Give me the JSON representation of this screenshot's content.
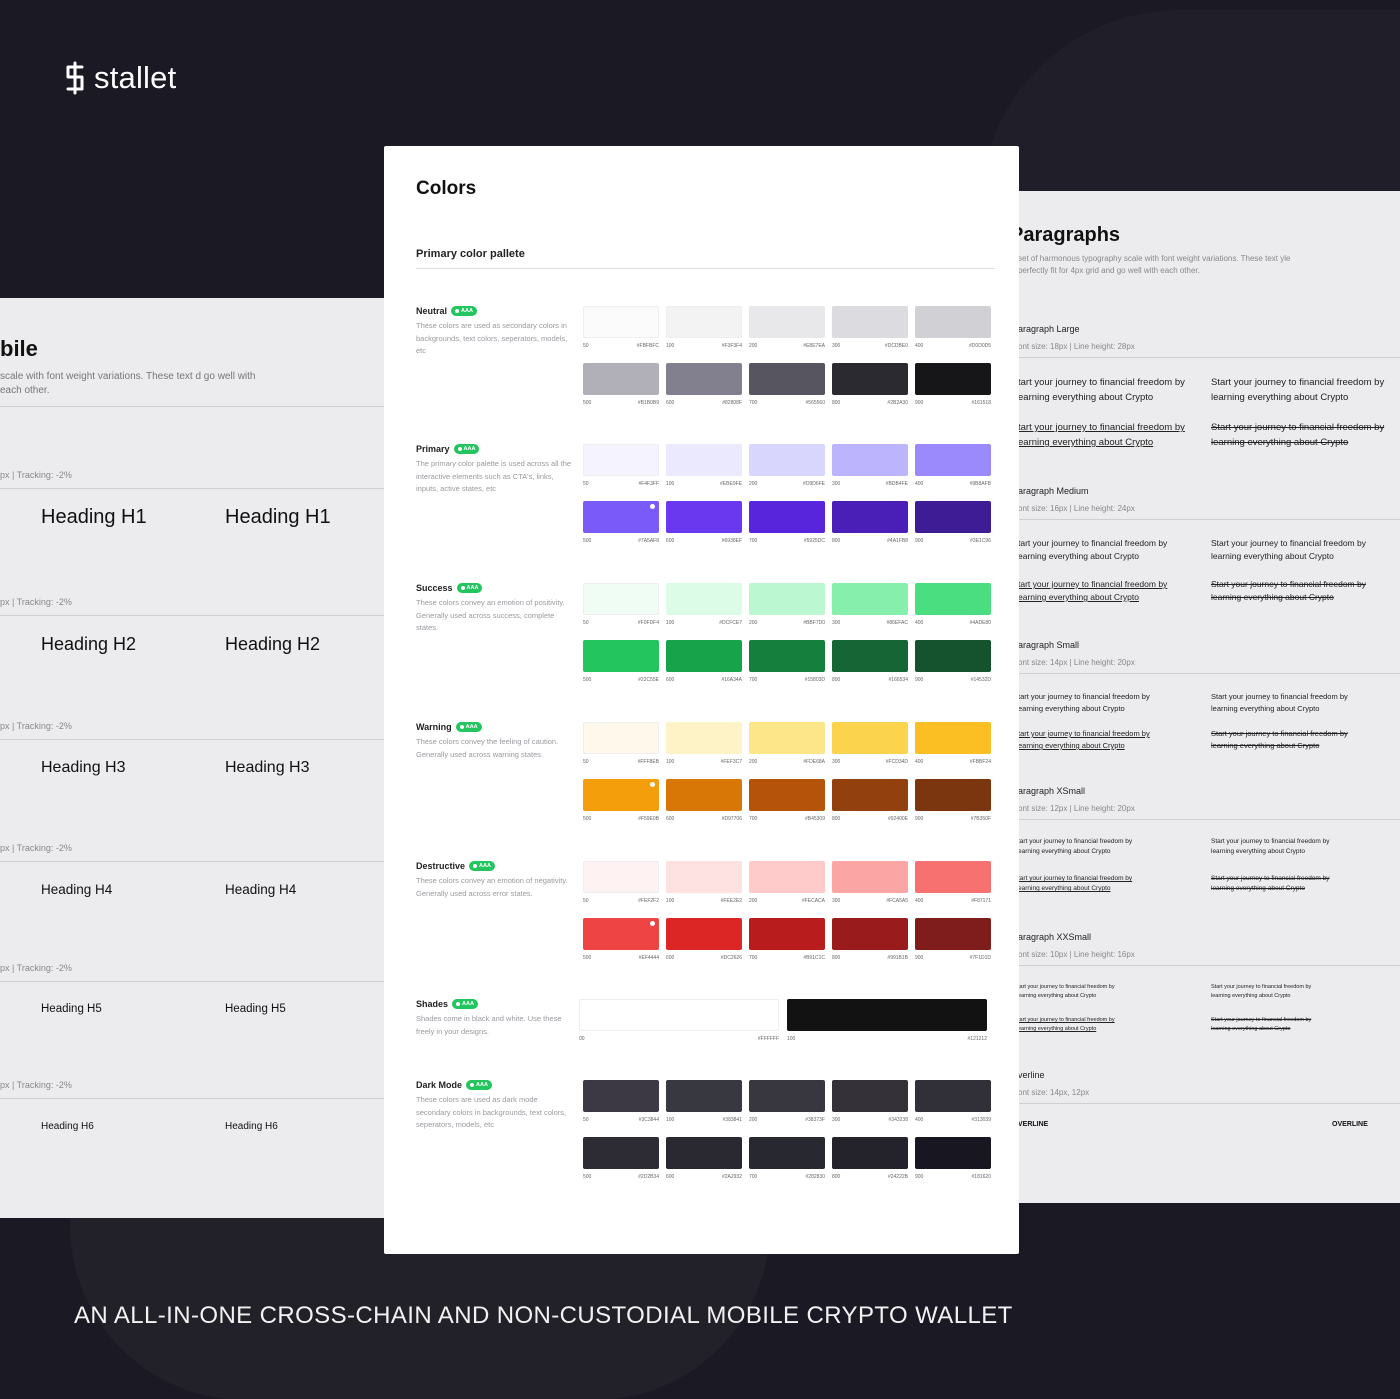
{
  "brand": {
    "name": "stallet"
  },
  "tagline": "AN ALL-IN-ONE CROSS-CHAIN AND NON-CUSTODIAL MOBILE CRYPTO WALLET",
  "headings_panel": {
    "title": "bile",
    "description": "scale with font weight variations. These text d go well with each other.",
    "rows": [
      {
        "spec": "px | Tracking: -2%",
        "label": "Heading H1",
        "size": 20
      },
      {
        "spec": "px | Tracking: -2%",
        "label": "Heading H2",
        "size": 18
      },
      {
        "spec": "px | Tracking: -2%",
        "label": "Heading H3",
        "size": 16
      },
      {
        "spec": "px | Tracking: -2%",
        "label": "Heading H4",
        "size": 13.5
      },
      {
        "spec": "px | Tracking: -2%",
        "label": "Heading H5",
        "size": 11.5
      },
      {
        "spec": "px | Tracking: -2%",
        "label": "Heading H6",
        "size": 10
      }
    ]
  },
  "paragraphs_panel": {
    "title": "Paragraphs",
    "description": "set of harmonous typography scale with font weight variations. These text yle perfectly fit for 4px grid and go well with each other.",
    "sample_cut": "tart your journey to financial freedom by earning everything about Crypto",
    "sample_full": "Start your journey to financial freedom by learning everything about Crypto",
    "sections": [
      {
        "label": "aragraph Large",
        "spec": "ont size: 18px | Line height: 28px",
        "text_size": 9.5
      },
      {
        "label": "aragraph Medium",
        "spec": "ont size: 16px | Line height: 24px",
        "text_size": 8.5
      },
      {
        "label": "aragraph Small",
        "spec": "ont size: 14px | Line height: 20px",
        "text_size": 7.5
      },
      {
        "label": "aragraph XSmall",
        "spec": "ont size: 12px | Line height: 20px",
        "text_size": 6.5
      },
      {
        "label": "aragraph XXSmall",
        "spec": "ont size: 10px | Line height: 16px",
        "text_size": 5.5
      }
    ],
    "overline": {
      "label": "verline",
      "spec": "ont size: 14px, 12px",
      "sample_left": "VERLINE",
      "sample_right": "OVERLINE"
    }
  },
  "colors_panel": {
    "title": "Colors",
    "subtitle": "Primary color pallete",
    "badge": "AAA",
    "groups": [
      {
        "name": "Neutral",
        "description": "These colors are used as secondary colors in backgrounds, text colors, seperators, models, etc",
        "swatches": [
          {
            "step": "50",
            "hex": "#FBFBFC"
          },
          {
            "step": "100",
            "hex": "#F3F3F4"
          },
          {
            "step": "200",
            "hex": "#E8E7EA"
          },
          {
            "step": "300",
            "hex": "#DCDBE0"
          },
          {
            "step": "400",
            "hex": "#D0D0D5"
          },
          {
            "step": "500",
            "hex": "#B1B0B9"
          },
          {
            "step": "600",
            "hex": "#82808F"
          },
          {
            "step": "700",
            "hex": "#565560"
          },
          {
            "step": "800",
            "hex": "#2B2A30"
          },
          {
            "step": "900",
            "hex": "#161518"
          }
        ]
      },
      {
        "name": "Primary",
        "description": "The primary color palette is used across all the interactive elements such as CTA's, links, inputs, active states, etc",
        "swatches": [
          {
            "step": "50",
            "hex": "#F4F3FF"
          },
          {
            "step": "100",
            "hex": "#EBE9FE"
          },
          {
            "step": "200",
            "hex": "#D9D6FE"
          },
          {
            "step": "300",
            "hex": "#BDB4FE"
          },
          {
            "step": "400",
            "hex": "#9B8AFB"
          },
          {
            "step": "500",
            "hex": "#7A5AF8"
          },
          {
            "step": "600",
            "hex": "#6938EF"
          },
          {
            "step": "700",
            "hex": "#5925DC"
          },
          {
            "step": "800",
            "hex": "#4A1FB8"
          },
          {
            "step": "900",
            "hex": "#3E1C96"
          }
        ]
      },
      {
        "name": "Success",
        "description": "These colors convey an emotion of positivity. Generally used across success, complete states.",
        "swatches": [
          {
            "step": "50",
            "hex": "#F0FDF4"
          },
          {
            "step": "100",
            "hex": "#DCFCE7"
          },
          {
            "step": "200",
            "hex": "#BBF7D0"
          },
          {
            "step": "300",
            "hex": "#86EFAC"
          },
          {
            "step": "400",
            "hex": "#4ADE80"
          },
          {
            "step": "500",
            "hex": "#22C55E"
          },
          {
            "step": "600",
            "hex": "#16A34A"
          },
          {
            "step": "700",
            "hex": "#15803D"
          },
          {
            "step": "800",
            "hex": "#166534"
          },
          {
            "step": "900",
            "hex": "#14532D"
          }
        ]
      },
      {
        "name": "Warning",
        "description": "These colors convey the feeling of caution. Generally used across warning states.",
        "swatches": [
          {
            "step": "50",
            "hex": "#FFF8EB"
          },
          {
            "step": "100",
            "hex": "#FEF3C7"
          },
          {
            "step": "200",
            "hex": "#FDE68A"
          },
          {
            "step": "300",
            "hex": "#FCD34D"
          },
          {
            "step": "400",
            "hex": "#FBBF24"
          },
          {
            "step": "500",
            "hex": "#F59E0B"
          },
          {
            "step": "600",
            "hex": "#D97706"
          },
          {
            "step": "700",
            "hex": "#B45309"
          },
          {
            "step": "800",
            "hex": "#92400E"
          },
          {
            "step": "900",
            "hex": "#7B350F"
          }
        ]
      },
      {
        "name": "Destructive",
        "description": "These colors convey an emotion of negativity. Generally used across error states.",
        "swatches": [
          {
            "step": "50",
            "hex": "#FEF2F2"
          },
          {
            "step": "100",
            "hex": "#FEE2E2"
          },
          {
            "step": "200",
            "hex": "#FECACA"
          },
          {
            "step": "300",
            "hex": "#FCA5A5"
          },
          {
            "step": "400",
            "hex": "#F87171"
          },
          {
            "step": "500",
            "hex": "#EF4444"
          },
          {
            "step": "600",
            "hex": "#DC2626"
          },
          {
            "step": "700",
            "hex": "#B91C1C"
          },
          {
            "step": "800",
            "hex": "#991B1B"
          },
          {
            "step": "900",
            "hex": "#7F1D1D"
          }
        ]
      },
      {
        "name": "Shades",
        "description": "Shades come in black and white. Use these freely in your designs.",
        "swatches": [
          {
            "step": "00",
            "hex": "#FFFFFF"
          },
          {
            "step": "100",
            "hex": "#121212"
          }
        ]
      },
      {
        "name": "Dark Mode",
        "description": "These colors are used as dark mode secondary colors in backgrounds, text colors, seperators, models, etc",
        "swatches": [
          {
            "step": "50",
            "hex": "#3C3844"
          },
          {
            "step": "100",
            "hex": "#383841"
          },
          {
            "step": "200",
            "hex": "#38373F"
          },
          {
            "step": "300",
            "hex": "#343238"
          },
          {
            "step": "400",
            "hex": "#313039"
          },
          {
            "step": "500",
            "hex": "#2D2B34"
          },
          {
            "step": "600",
            "hex": "#2A2932"
          },
          {
            "step": "700",
            "hex": "#282830"
          },
          {
            "step": "800",
            "hex": "#24222B"
          },
          {
            "step": "900",
            "hex": "#181620"
          }
        ]
      }
    ]
  }
}
